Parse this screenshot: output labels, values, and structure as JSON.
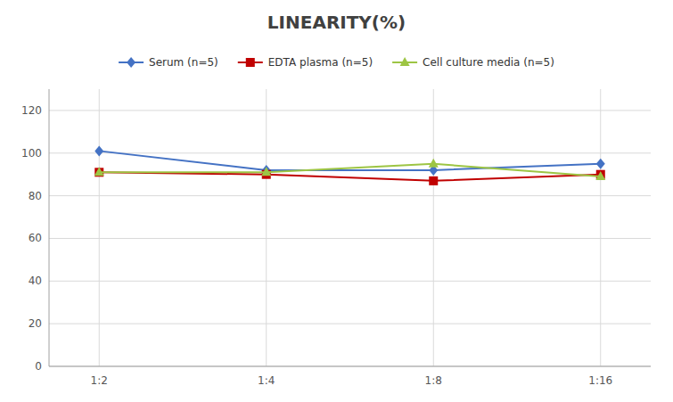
{
  "chart_data": {
    "type": "line",
    "title": "LINEARITY(%)",
    "categories": [
      "1:2",
      "1:4",
      "1:8",
      "1:16"
    ],
    "series": [
      {
        "name": "Serum (n=5)",
        "color": "#4472C4",
        "marker": "diamond",
        "values": [
          101,
          92,
          92,
          95
        ]
      },
      {
        "name": "EDTA plasma (n=5)",
        "color": "#C00000",
        "marker": "square",
        "values": [
          91,
          90,
          87,
          90
        ]
      },
      {
        "name": "Cell culture media (n=5)",
        "color": "#9DC544",
        "marker": "triangle",
        "values": [
          91,
          91,
          95,
          89
        ]
      }
    ],
    "ylim": [
      0,
      130
    ],
    "yticks": [
      0,
      20,
      40,
      60,
      80,
      100,
      120
    ],
    "grid": true,
    "legend": "top"
  }
}
